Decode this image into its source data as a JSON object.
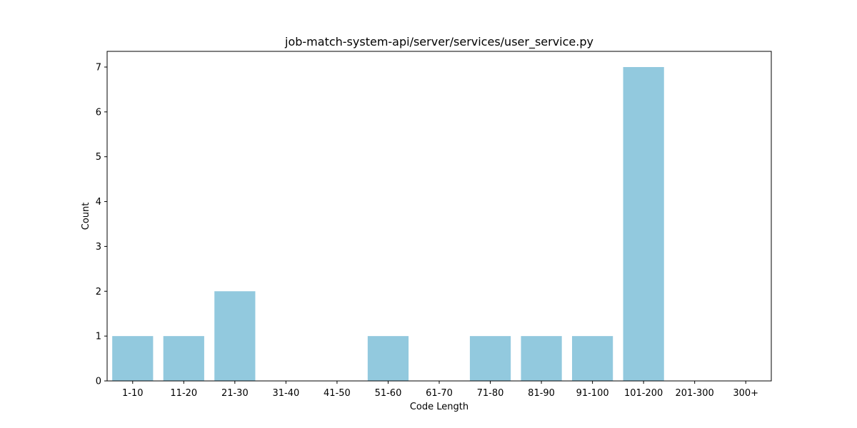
{
  "chart_data": {
    "type": "bar",
    "title": "job-match-system-api/server/services/user_service.py",
    "xlabel": "Code Length",
    "ylabel": "Count",
    "categories": [
      "1-10",
      "11-20",
      "21-30",
      "31-40",
      "41-50",
      "51-60",
      "61-70",
      "71-80",
      "81-90",
      "91-100",
      "101-200",
      "201-300",
      "300+"
    ],
    "values": [
      1,
      1,
      2,
      0,
      0,
      1,
      0,
      1,
      1,
      1,
      7,
      0,
      0
    ],
    "ylim": [
      0,
      7.35
    ],
    "yticks": [
      0,
      1,
      2,
      3,
      4,
      5,
      6,
      7
    ],
    "bar_color": "#92c9de",
    "grid": false,
    "legend": "none"
  }
}
